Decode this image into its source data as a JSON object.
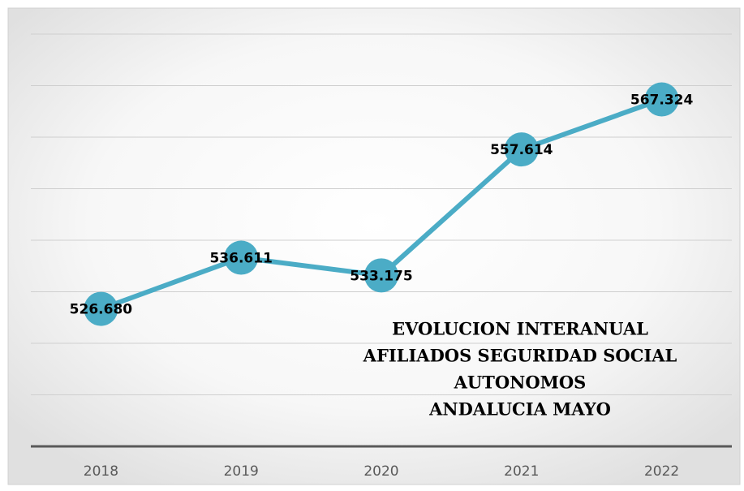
{
  "chart_data": {
    "type": "line",
    "title": [
      "EVOLUCION INTERANUAL",
      "AFILIADOS SEGURIDAD SOCIAL",
      "AUTONOMOS",
      "ANDALUCIA MAYO"
    ],
    "categories": [
      "2018",
      "2019",
      "2020",
      "2021",
      "2022"
    ],
    "series": [
      {
        "color": "#4bacc6",
        "values": [
          526680,
          536611,
          533175,
          557614,
          567324
        ],
        "value_labels": [
          "526.680",
          "536.611",
          "533.175",
          "557.614",
          "567.324"
        ]
      }
    ],
    "ylim": [
      500000,
      580000
    ],
    "yticks": [
      500000,
      510000,
      520000,
      530000,
      540000,
      550000,
      560000,
      570000,
      580000
    ],
    "grid": true
  }
}
